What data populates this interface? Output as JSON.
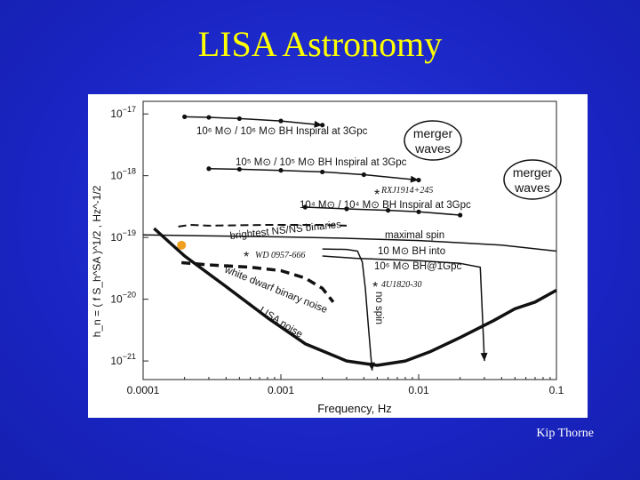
{
  "slide": {
    "title": "LISA Astronomy",
    "credit": "Kip Thorne"
  },
  "colors": {
    "background": "#1b27c6",
    "title": "#ffff00",
    "credit": "#ffffff",
    "orange_point": "#f0a020"
  },
  "chart_data": {
    "type": "line",
    "title": "",
    "xlabel": "Frequency, Hz",
    "ylabel": "h_n = ( f S_h^SA )^1/2 , Hz^-1/2",
    "xscale": "log",
    "yscale": "log",
    "xlim": [
      0.0001,
      0.1
    ],
    "ylim": [
      5e-22,
      1.6e-17
    ],
    "xticks": [
      {
        "value": 0.0001,
        "label": "0.0001"
      },
      {
        "value": 0.001,
        "label": "0.001"
      },
      {
        "value": 0.01,
        "label": "0.01"
      },
      {
        "value": 0.1,
        "label": "0.1"
      }
    ],
    "yticks": [
      {
        "value": 1e-17,
        "base": "10",
        "exp": "−17"
      },
      {
        "value": 1e-18,
        "base": "10",
        "exp": "−18"
      },
      {
        "value": 1e-19,
        "base": "10",
        "exp": "−19"
      },
      {
        "value": 1e-20,
        "base": "10",
        "exp": "−20"
      },
      {
        "value": 1e-21,
        "base": "10",
        "exp": "−21"
      }
    ],
    "annotations": {
      "inspiral_1e6": "10⁶ M⊙ / 10⁶ M⊙ BH Inspiral at 3Gpc",
      "inspiral_1e5": "10⁵ M⊙ / 10⁵ M⊙ BH Inspiral at 3Gpc",
      "inspiral_1e4": "10⁴ M⊙ / 10⁴ M⊙ BH Inspiral at 3Gpc",
      "merger_1_line1": "merger",
      "merger_1_line2": "waves",
      "merger_2_line1": "merger",
      "merger_2_line2": "waves",
      "rxj": "RXJ1914+245",
      "wd0957": "WD 0957-666",
      "u4": "4U1820-30",
      "nsns": "brightest NS/NS binaries",
      "maximal_spin": "maximal spin",
      "bh_into_line1": "10 M⊙ BH into",
      "bh_into_line2": "10⁶ M⊙ BH@1Gpc",
      "no_spin": "no spin",
      "wd_noise": "white dwarf binary noise",
      "lisa_noise": "LISA noise"
    },
    "series": [
      {
        "role": "inspiral_1e6",
        "x": [
          0.0002,
          0.0003,
          0.0005,
          0.001,
          0.002
        ],
        "y": [
          9e-18,
          8.8e-18,
          8.4e-18,
          7.7e-18,
          6.6e-18
        ]
      },
      {
        "role": "inspiral_1e5",
        "x": [
          0.0003,
          0.0005,
          0.001,
          0.002,
          0.004,
          0.01
        ],
        "y": [
          1.3e-18,
          1.27e-18,
          1.22e-18,
          1.15e-18,
          1.04e-18,
          8.5e-19
        ]
      },
      {
        "role": "inspiral_1e4",
        "x": [
          0.0015,
          0.003,
          0.006,
          0.01,
          0.02
        ],
        "y": [
          3.1e-19,
          2.9e-19,
          2.75e-19,
          2.6e-19,
          2.3e-19
        ]
      },
      {
        "role": "maximal_spin",
        "x": [
          0.0001,
          0.0003,
          0.001,
          0.003,
          0.01,
          0.02,
          0.04,
          0.1
        ],
        "y": [
          1.1e-19,
          1.06e-19,
          1.02e-19,
          9.7e-20,
          8.9e-20,
          8.2e-20,
          7.5e-20,
          6e-20
        ]
      },
      {
        "role": "no_spin",
        "x": [
          0.002,
          0.003,
          0.0036,
          0.0039,
          0.0041,
          0.0043,
          0.0045,
          0.0046
        ],
        "y": [
          6.5e-20,
          6.4e-20,
          6e-20,
          4e-20,
          1.5e-20,
          4e-21,
          1.2e-21,
          7e-22
        ]
      },
      {
        "role": "lisa_noise",
        "x": [
          0.00012,
          0.0002,
          0.0004,
          0.0008,
          0.0015,
          0.003,
          0.005,
          0.008,
          0.012,
          0.02,
          0.035,
          0.05,
          0.07,
          0.1
        ],
        "y": [
          1.4e-19,
          5e-20,
          1.6e-20,
          5e-21,
          1.9e-21,
          1e-21,
          8.5e-22,
          1e-21,
          1.4e-21,
          2.4e-21,
          4.5e-21,
          7e-21,
          9e-21,
          1.4e-20
        ]
      },
      {
        "role": "wd_noise",
        "x": [
          0.00019,
          0.0003,
          0.0006,
          0.001,
          0.0015,
          0.002,
          0.0024
        ],
        "y": [
          3.9e-20,
          3.6e-20,
          3.3e-20,
          2.9e-20,
          2.2e-20,
          1.5e-20,
          9e-21
        ]
      },
      {
        "role": "nsns",
        "x": [
          0.00018,
          0.00022,
          0.0003,
          0.0008,
          0.002,
          0.003
        ],
        "y": [
          1.5e-19,
          1.6e-19,
          1.55e-19,
          1.6e-19,
          1.6e-19,
          1.55e-19
        ]
      },
      {
        "role": "bh_into",
        "x": [
          0.002,
          0.0035,
          0.01,
          0.02,
          0.028,
          0.03
        ],
        "y": [
          5e-20,
          4.6e-20,
          4.2e-20,
          3.8e-20,
          3.3e-20,
          1e-21
        ]
      }
    ],
    "points": [
      {
        "x": 0.00019,
        "y": 7.5e-20,
        "color": "orange"
      }
    ]
  }
}
